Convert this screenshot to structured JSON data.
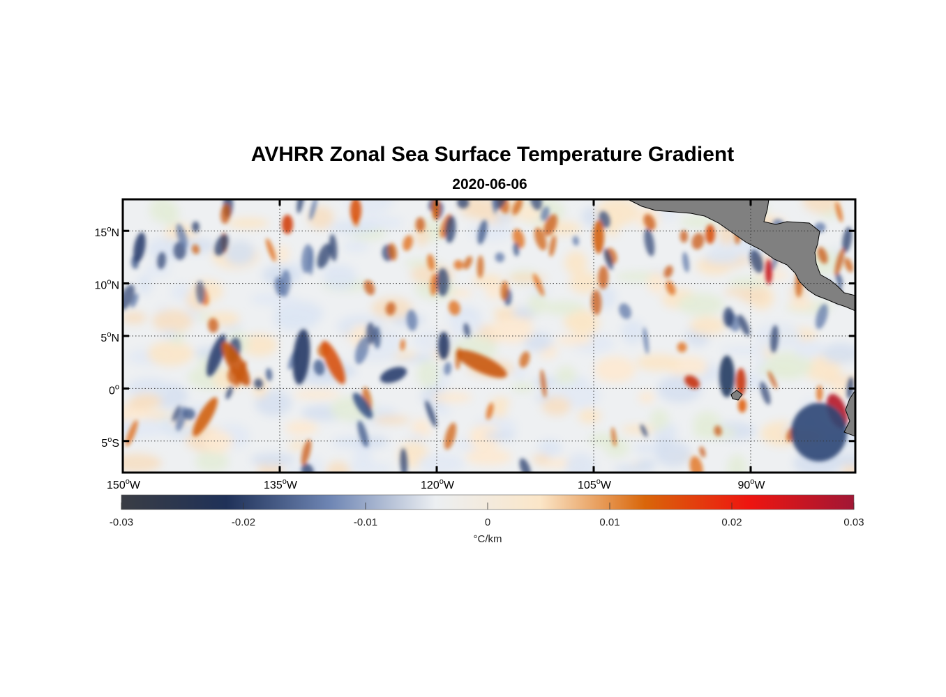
{
  "title": "AVHRR Zonal Sea Surface Temperature Gradient",
  "subtitle": "2020-06-06",
  "map": {
    "lon_range": [
      -150,
      -80
    ],
    "lat_range": [
      -8,
      18
    ],
    "x_ticks": [
      {
        "lon": -150,
        "num": "150",
        "sup": "o",
        "hemi": "W"
      },
      {
        "lon": -135,
        "num": "135",
        "sup": "o",
        "hemi": "W"
      },
      {
        "lon": -120,
        "num": "120",
        "sup": "o",
        "hemi": "W"
      },
      {
        "lon": -105,
        "num": "105",
        "sup": "o",
        "hemi": "W"
      },
      {
        "lon": -90,
        "num": "90",
        "sup": "o",
        "hemi": "W"
      }
    ],
    "y_ticks": [
      {
        "lat": 15,
        "num": "15",
        "sup": "o",
        "hemi": "N"
      },
      {
        "lat": 10,
        "num": "10",
        "sup": "o",
        "hemi": "N"
      },
      {
        "lat": 5,
        "num": "5",
        "sup": "o",
        "hemi": "N"
      },
      {
        "lat": 0,
        "num": "0",
        "sup": "o",
        "hemi": ""
      },
      {
        "lat": -5,
        "num": "5",
        "sup": "o",
        "hemi": "S"
      }
    ],
    "grid": true,
    "land_color": "#808080",
    "ocean_color": "#eef0f2"
  },
  "colorbar": {
    "ticks": [
      "-0.03",
      "-0.02",
      "-0.01",
      "0",
      "0.01",
      "0.02",
      "0.03"
    ],
    "tick_values": [
      -0.03,
      -0.02,
      -0.01,
      0,
      0.01,
      0.02,
      0.03
    ],
    "unit": "°C/km",
    "stops": [
      "#3a3d44",
      "#1f3158",
      "#6f86b4",
      "#eceff2",
      "#fbe6c8",
      "#d9660a",
      "#ee1510",
      "#a11735"
    ]
  }
}
